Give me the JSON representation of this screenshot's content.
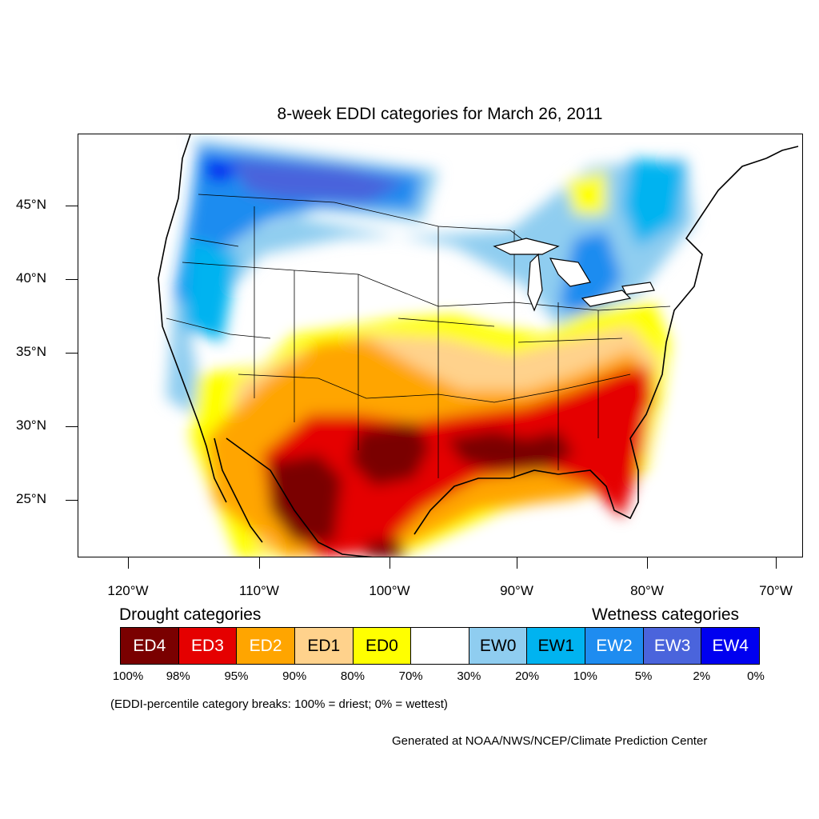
{
  "title": "8-week EDDI categories for March 26, 2011",
  "lat_labels": [
    "45°N",
    "40°N",
    "35°N",
    "30°N",
    "25°N"
  ],
  "lon_labels": [
    "120°W",
    "110°W",
    "100°W",
    "90°W",
    "80°W",
    "70°W"
  ],
  "drought_heading": "Drought categories",
  "wetness_heading": "Wetness categories",
  "categories": [
    {
      "label": "ED4",
      "color": "#7a0000",
      "text_color": "#ffffff"
    },
    {
      "label": "ED3",
      "color": "#e50000",
      "text_color": "#ffffff"
    },
    {
      "label": "ED2",
      "color": "#ffa500",
      "text_color": "#ffffff"
    },
    {
      "label": "ED1",
      "color": "#ffd28c",
      "text_color": "#000000"
    },
    {
      "label": "ED0",
      "color": "#ffff00",
      "text_color": "#000000"
    },
    {
      "label": "",
      "color": "#ffffff",
      "text_color": "#000000"
    },
    {
      "label": "EW0",
      "color": "#8fcdf0",
      "text_color": "#000000"
    },
    {
      "label": "EW1",
      "color": "#00b3f0",
      "text_color": "#000000"
    },
    {
      "label": "EW2",
      "color": "#1e8cf0",
      "text_color": "#ffffff"
    },
    {
      "label": "EW3",
      "color": "#4a64dc",
      "text_color": "#ffffff"
    },
    {
      "label": "EW4",
      "color": "#0000f0",
      "text_color": "#ffffff"
    }
  ],
  "percent_breaks": [
    "100%",
    "98%",
    "95%",
    "90%",
    "80%",
    "70%",
    "30%",
    "20%",
    "10%",
    "5%",
    "2%",
    "0%"
  ],
  "note": "(EDDI-percentile category breaks: 100% = driest; 0% = wettest)",
  "credit": "Generated at NOAA/NWS/NCEP/Climate Prediction Center"
}
